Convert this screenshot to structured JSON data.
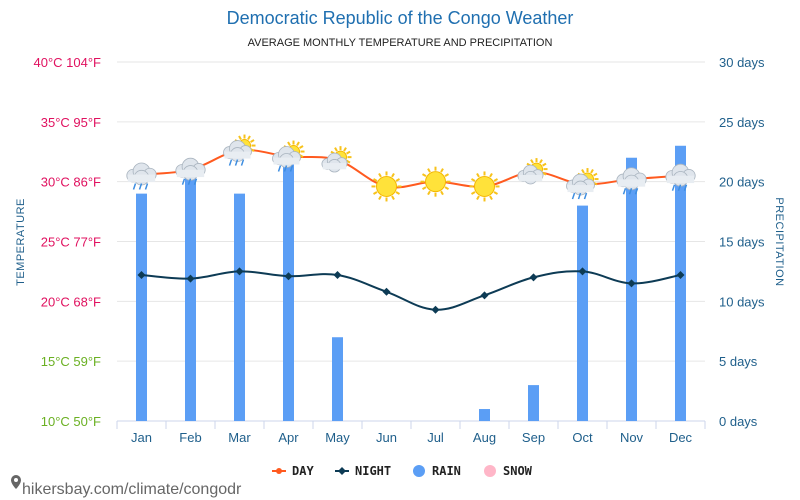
{
  "title": "Democratic Republic of the Congo Weather",
  "subtitle": "AVERAGE MONTHLY TEMPERATURE AND PRECIPITATION",
  "left_axis_title": "TEMPERATURE",
  "right_axis_title": "PRECIPITATION",
  "watermark": "hikersbay.com/climate/congodr",
  "colors": {
    "day": "#ff5a1f",
    "night": "#0d3b55",
    "rain": "#5b9ef5",
    "snow": "#ffb6c8",
    "title": "#1f6fb0",
    "axis_text": "#1f5f8b"
  },
  "chart_data": {
    "type": "bar+line",
    "categories": [
      "Jan",
      "Feb",
      "Mar",
      "Apr",
      "May",
      "Jun",
      "Jul",
      "Aug",
      "Sep",
      "Oct",
      "Nov",
      "Dec"
    ],
    "series": [
      {
        "name": "DAY",
        "kind": "line",
        "axis": "temperature",
        "values": [
          30.6,
          31.0,
          32.6,
          32.1,
          31.8,
          29.6,
          30.0,
          29.6,
          30.8,
          29.8,
          30.2,
          30.5
        ]
      },
      {
        "name": "NIGHT",
        "kind": "line",
        "axis": "temperature",
        "values": [
          22.2,
          21.9,
          22.5,
          22.1,
          22.2,
          20.8,
          19.3,
          20.5,
          22.0,
          22.5,
          21.5,
          22.2
        ]
      },
      {
        "name": "RAIN",
        "kind": "bar",
        "axis": "precipitation",
        "values": [
          19,
          21,
          19,
          22,
          7,
          0,
          0,
          1,
          3,
          18,
          22,
          23
        ]
      },
      {
        "name": "SNOW",
        "kind": "bar",
        "axis": "precipitation",
        "values": [
          0,
          0,
          0,
          0,
          0,
          0,
          0,
          0,
          0,
          0,
          0,
          0
        ]
      }
    ],
    "weather_icons": [
      "cloud-rain",
      "cloud-rain",
      "cloud-sun-rain",
      "cloud-sun-rain",
      "cloud-sun",
      "sun",
      "sun",
      "sun",
      "cloud-sun",
      "cloud-sun-rain",
      "cloud-rain",
      "cloud-rain"
    ],
    "left_axis": {
      "ylim": [
        10,
        40
      ],
      "ticks": [
        {
          "value": 40,
          "label": "40°C 104°F",
          "color": "#e0115f"
        },
        {
          "value": 35,
          "label": "35°C 95°F",
          "color": "#e0115f"
        },
        {
          "value": 30,
          "label": "30°C 86°F",
          "color": "#e0115f"
        },
        {
          "value": 25,
          "label": "25°C 77°F",
          "color": "#e0115f"
        },
        {
          "value": 20,
          "label": "20°C 68°F",
          "color": "#e0115f"
        },
        {
          "value": 15,
          "label": "15°C 59°F",
          "color": "#6ab022"
        },
        {
          "value": 10,
          "label": "10°C 50°F",
          "color": "#6ab022"
        }
      ]
    },
    "right_axis": {
      "ylim": [
        0,
        30
      ],
      "ticks": [
        {
          "value": 30,
          "label": "30 days"
        },
        {
          "value": 25,
          "label": "25 days"
        },
        {
          "value": 20,
          "label": "20 days"
        },
        {
          "value": 15,
          "label": "15 days"
        },
        {
          "value": 10,
          "label": "10 days"
        },
        {
          "value": 5,
          "label": "5 days"
        },
        {
          "value": 0,
          "label": "0 days"
        }
      ]
    },
    "grid": true,
    "legend_position": "bottom-center"
  }
}
